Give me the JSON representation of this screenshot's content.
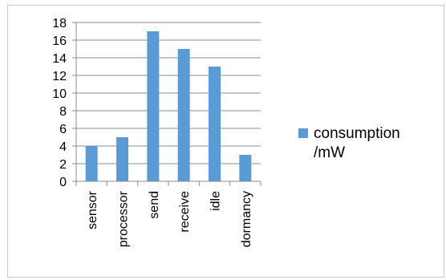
{
  "chart_data": {
    "type": "bar",
    "categories": [
      "sensor",
      "processor",
      "send",
      "receive",
      "idle",
      "dormancy"
    ],
    "series": [
      {
        "name": "consumption /mW",
        "values": [
          4,
          5,
          17,
          15,
          13,
          3
        ],
        "color": "#5b9bd5"
      }
    ],
    "ylim": [
      0,
      18
    ],
    "yticks": [
      0,
      2,
      4,
      6,
      8,
      10,
      12,
      14,
      16,
      18
    ],
    "grid": true,
    "legend_position": "right"
  },
  "legend": {
    "line1": "consumption",
    "line2": "/mW"
  }
}
